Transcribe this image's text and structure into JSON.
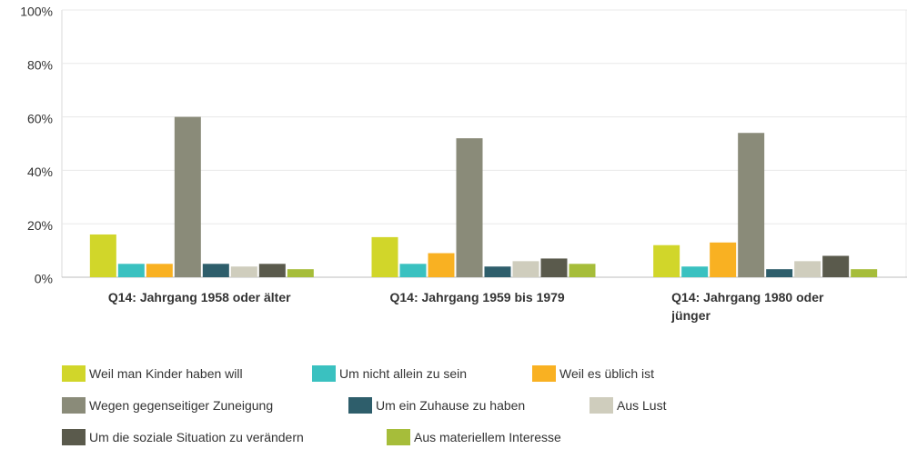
{
  "chart_data": {
    "type": "bar",
    "categories": [
      "Q14: Jahrgang 1958 oder älter",
      "Q14: Jahrgang 1959 bis 1979",
      "Q14: Jahrgang 1980 oder jünger"
    ],
    "series": [
      {
        "name": "Weil man Kinder haben will",
        "color": "#d1d62a",
        "values": [
          16,
          15,
          12
        ]
      },
      {
        "name": "Um nicht allein zu sein",
        "color": "#3ac1c0",
        "values": [
          5,
          5,
          4
        ]
      },
      {
        "name": "Weil es üblich ist",
        "color": "#f9b122",
        "values": [
          5,
          9,
          13
        ]
      },
      {
        "name": "Wegen gegenseitiger Zuneigung",
        "color": "#8a8b79",
        "values": [
          60,
          52,
          54
        ]
      },
      {
        "name": "Um ein Zuhause zu haben",
        "color": "#2e5e6b",
        "values": [
          5,
          4,
          3
        ]
      },
      {
        "name": "Aus Lust",
        "color": "#cfcdbd",
        "values": [
          4,
          6,
          6
        ]
      },
      {
        "name": "Um die soziale Situation zu verändern",
        "color": "#5a5a4c",
        "values": [
          5,
          7,
          8
        ]
      },
      {
        "name": "Aus materiellem Interesse",
        "color": "#a6bd3a",
        "values": [
          3,
          5,
          3
        ]
      }
    ],
    "ylim": [
      0,
      100
    ],
    "yticks": [
      {
        "value": 0,
        "label": "0%"
      },
      {
        "value": 20,
        "label": "20%"
      },
      {
        "value": 40,
        "label": "40%"
      },
      {
        "value": 60,
        "label": "60%"
      },
      {
        "value": 80,
        "label": "80%"
      },
      {
        "value": 100,
        "label": "100%"
      }
    ],
    "grid": true
  }
}
